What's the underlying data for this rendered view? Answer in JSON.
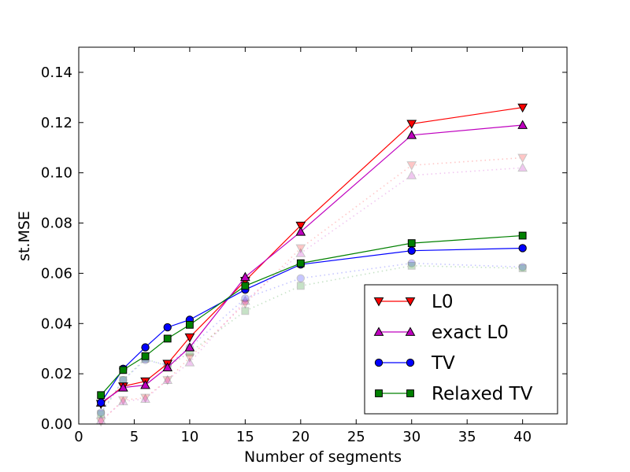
{
  "chart_data": {
    "type": "line",
    "title": "",
    "xlabel": "Number of segments",
    "ylabel": "st.MSE",
    "xlim": [
      0,
      44
    ],
    "ylim": [
      0.0,
      0.15
    ],
    "xticks": [
      0,
      5,
      10,
      15,
      20,
      25,
      30,
      35,
      40
    ],
    "yticks": [
      0.0,
      0.02,
      0.04,
      0.06,
      0.08,
      0.1,
      0.12,
      0.14
    ],
    "xtick_labels": [
      "0",
      "5",
      "10",
      "15",
      "20",
      "25",
      "30",
      "35",
      "40"
    ],
    "ytick_labels": [
      "0.00",
      "0.02",
      "0.04",
      "0.06",
      "0.08",
      "0.10",
      "0.12",
      "0.14"
    ],
    "grid": false,
    "legend_position": "lower-right",
    "x": [
      2,
      4,
      6,
      8,
      10,
      15,
      20,
      30,
      40
    ],
    "series": [
      {
        "name": "L0",
        "color": "#ff0000",
        "marker": "triangle-down",
        "style": "solid",
        "values": [
          0.008,
          0.015,
          0.017,
          0.024,
          0.0345,
          0.057,
          0.079,
          0.1195,
          0.126
        ]
      },
      {
        "name": "exact L0",
        "color": "#bf00bf",
        "marker": "triangle-up",
        "style": "solid",
        "values": [
          0.0085,
          0.0145,
          0.0155,
          0.0225,
          0.0305,
          0.0585,
          0.0765,
          0.115,
          0.119
        ]
      },
      {
        "name": "TV",
        "color": "#0000ff",
        "marker": "circle",
        "style": "solid",
        "values": [
          0.0085,
          0.022,
          0.0305,
          0.0385,
          0.0415,
          0.0535,
          0.0635,
          0.069,
          0.07
        ]
      },
      {
        "name": "Relaxed TV",
        "color": "#008000",
        "marker": "square",
        "style": "solid",
        "values": [
          0.0115,
          0.0215,
          0.027,
          0.034,
          0.0395,
          0.055,
          0.064,
          0.072,
          0.075
        ]
      },
      {
        "color": "#ff0000",
        "marker": "triangle-down",
        "style": "dotted",
        "values": [
          0.001,
          0.0095,
          0.0105,
          0.0175,
          0.0265,
          0.048,
          0.07,
          0.103,
          0.106
        ]
      },
      {
        "color": "#bf00bf",
        "marker": "triangle-up",
        "style": "dotted",
        "values": [
          0.0015,
          0.009,
          0.01,
          0.0175,
          0.0245,
          0.049,
          0.068,
          0.099,
          0.102
        ]
      },
      {
        "color": "#0000ff",
        "marker": "circle",
        "style": "dotted",
        "values": [
          0.0045,
          0.0175,
          0.0255,
          0.0235,
          0.0305,
          0.05,
          0.058,
          0.064,
          0.0625
        ]
      },
      {
        "color": "#008000",
        "marker": "square",
        "style": "dotted",
        "values": [
          0.004,
          0.0175,
          0.026,
          0.023,
          0.0285,
          0.045,
          0.055,
          0.063,
          0.062
        ]
      }
    ]
  }
}
